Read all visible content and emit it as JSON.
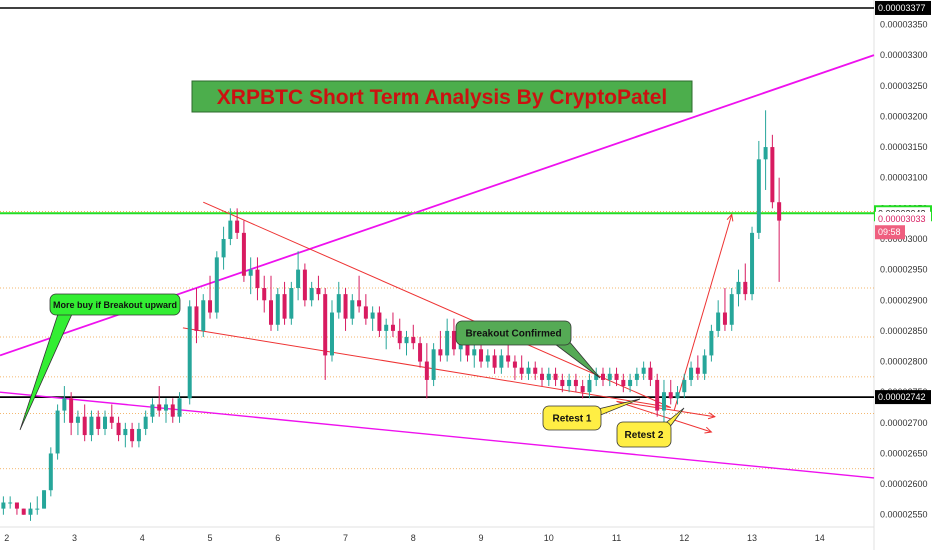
{
  "chart_data": {
    "type": "candlestick",
    "title": "XRPBTC Short Term Analysis By CryptoPatel",
    "ylim": [
      2.53e-05,
      3.39e-05
    ],
    "xlim": [
      1.9,
      14.8
    ],
    "y_ticks": [
      "0.00002550",
      "0.00002600",
      "0.00002650",
      "0.00002700",
      "0.00002750",
      "0.00002800",
      "0.00002850",
      "0.00002900",
      "0.00002950",
      "0.00003000",
      "0.00003050",
      "0.00003100",
      "0.00003150",
      "0.00003200",
      "0.00003250",
      "0.00003300",
      "0.00003350"
    ],
    "x_ticks": [
      "2",
      "3",
      "4",
      "5",
      "6",
      "7",
      "8",
      "9",
      "10",
      "11",
      "12",
      "13",
      "14"
    ],
    "colors": {
      "up": "#26a69a",
      "down": "#d81b60",
      "axis_text": "#333333"
    },
    "price_tags": [
      {
        "label": "0.00003377",
        "value": 3.377e-05,
        "style": "black"
      },
      {
        "label": "0.00003042",
        "value": 3.042e-05,
        "style": "green"
      },
      {
        "label": "0.00003033",
        "value": 3.033e-05,
        "style": "red"
      },
      {
        "label": "09:58",
        "value": 3.011e-05,
        "style": "red"
      },
      {
        "label": "0.00002742",
        "value": 2.742e-05,
        "style": "black"
      }
    ],
    "horizontal_lines": [
      {
        "value": 3.377e-05,
        "color": "#000000",
        "width": 1.5
      },
      {
        "value": 3.042e-05,
        "color": "#22dd22",
        "width": 2
      },
      {
        "value": 2.742e-05,
        "color": "#000000",
        "width": 1.8
      }
    ],
    "dotted_levels": [
      2.92e-05,
      2.84e-05,
      2.775e-05,
      2.715e-05,
      2.625e-05,
      3.045e-05
    ],
    "trendlines": [
      {
        "from": [
          1.9,
          2.81e-05
        ],
        "to": [
          14.8,
          3.3e-05
        ],
        "color": "#ee11ee",
        "width": 1.8
      },
      {
        "from": [
          1.9,
          2.75e-05
        ],
        "to": [
          14.8,
          2.61e-05
        ],
        "color": "#ee11ee",
        "width": 1.4
      },
      {
        "from": [
          4.9,
          3.06e-05
        ],
        "to": [
          11.8,
          2.725e-05
        ],
        "color": "#ee3333",
        "width": 1
      },
      {
        "from": [
          4.6,
          2.855e-05
        ],
        "to": [
          11.8,
          2.725e-05
        ],
        "color": "#ee3333",
        "width": 1
      },
      {
        "from": [
          11.0,
          2.735e-05
        ],
        "to": [
          12.45,
          2.71e-05
        ],
        "color": "#ee3333",
        "width": 1
      },
      {
        "from": [
          11.0,
          2.735e-05
        ],
        "to": [
          12.4,
          2.685e-05
        ],
        "color": "#ee3333",
        "width": 1
      },
      {
        "from": [
          11.85,
          2.72e-05
        ],
        "to": [
          12.7,
          3.04e-05
        ],
        "color": "#ee3333",
        "width": 1
      }
    ],
    "annotations": [
      {
        "id": "more-buy",
        "text": "More buy if Breakout upward",
        "x": 2.6,
        "y": 2.92e-05,
        "fill": "#33ee33"
      },
      {
        "id": "breakout",
        "text": "Breakout Confirmed",
        "x": 9.5,
        "y": 2.86e-05,
        "fill": "#55aa55"
      },
      {
        "id": "retest1",
        "text": "Retest 1",
        "x": 10.5,
        "y": 2.72e-05,
        "fill": "#ffee44"
      },
      {
        "id": "retest2",
        "text": "Retest 2",
        "x": 11.3,
        "y": 2.69e-05,
        "fill": "#ffee44"
      }
    ],
    "candles": [
      [
        1.95,
        2.56e-05,
        2.58e-05,
        2.55e-05,
        2.57e-05
      ],
      [
        2.05,
        2.57e-05,
        2.58e-05,
        2.56e-05,
        2.57e-05
      ],
      [
        2.15,
        2.57e-05,
        2.57e-05,
        2.55e-05,
        2.56e-05
      ],
      [
        2.25,
        2.56e-05,
        2.56e-05,
        2.55e-05,
        2.55e-05
      ],
      [
        2.35,
        2.55e-05,
        2.57e-05,
        2.54e-05,
        2.56e-05
      ],
      [
        2.45,
        2.56e-05,
        2.58e-05,
        2.55e-05,
        2.56e-05
      ],
      [
        2.55,
        2.56e-05,
        2.59e-05,
        2.56e-05,
        2.59e-05
      ],
      [
        2.65,
        2.59e-05,
        2.66e-05,
        2.58e-05,
        2.65e-05
      ],
      [
        2.75,
        2.65e-05,
        2.73e-05,
        2.64e-05,
        2.72e-05
      ],
      [
        2.85,
        2.72e-05,
        2.76e-05,
        2.7e-05,
        2.74e-05
      ],
      [
        2.95,
        2.74e-05,
        2.75e-05,
        2.68e-05,
        2.7e-05
      ],
      [
        3.05,
        2.7e-05,
        2.72e-05,
        2.68e-05,
        2.71e-05
      ],
      [
        3.15,
        2.71e-05,
        2.73e-05,
        2.67e-05,
        2.68e-05
      ],
      [
        3.25,
        2.68e-05,
        2.72e-05,
        2.67e-05,
        2.71e-05
      ],
      [
        3.35,
        2.71e-05,
        2.72e-05,
        2.68e-05,
        2.69e-05
      ],
      [
        3.45,
        2.69e-05,
        2.72e-05,
        2.68e-05,
        2.71e-05
      ],
      [
        3.55,
        2.71e-05,
        2.73e-05,
        2.69e-05,
        2.7e-05
      ],
      [
        3.65,
        2.7e-05,
        2.71e-05,
        2.67e-05,
        2.68e-05
      ],
      [
        3.75,
        2.68e-05,
        2.7e-05,
        2.66e-05,
        2.69e-05
      ],
      [
        3.85,
        2.69e-05,
        2.7e-05,
        2.66e-05,
        2.67e-05
      ],
      [
        3.95,
        2.67e-05,
        2.7e-05,
        2.66e-05,
        2.69e-05
      ],
      [
        4.05,
        2.69e-05,
        2.72e-05,
        2.68e-05,
        2.71e-05
      ],
      [
        4.15,
        2.71e-05,
        2.74e-05,
        2.7e-05,
        2.73e-05
      ],
      [
        4.25,
        2.73e-05,
        2.76e-05,
        2.71e-05,
        2.72e-05
      ],
      [
        4.35,
        2.72e-05,
        2.74e-05,
        2.7e-05,
        2.73e-05
      ],
      [
        4.45,
        2.73e-05,
        2.74e-05,
        2.7e-05,
        2.71e-05
      ],
      [
        4.55,
        2.71e-05,
        2.75e-05,
        2.7e-05,
        2.74e-05
      ],
      [
        4.7,
        2.74e-05,
        2.9e-05,
        2.73e-05,
        2.89e-05
      ],
      [
        4.8,
        2.89e-05,
        2.92e-05,
        2.83e-05,
        2.85e-05
      ],
      [
        4.9,
        2.85e-05,
        2.91e-05,
        2.84e-05,
        2.9e-05
      ],
      [
        5.0,
        2.9e-05,
        2.94e-05,
        2.87e-05,
        2.88e-05
      ],
      [
        5.1,
        2.88e-05,
        2.98e-05,
        2.87e-05,
        2.97e-05
      ],
      [
        5.2,
        2.97e-05,
        3.02e-05,
        2.95e-05,
        3e-05
      ],
      [
        5.3,
        3e-05,
        3.05e-05,
        2.99e-05,
        3.03e-05
      ],
      [
        5.4,
        3.03e-05,
        3.05e-05,
        3e-05,
        3.01e-05
      ],
      [
        5.5,
        3.01e-05,
        3.03e-05,
        2.93e-05,
        2.94e-05
      ],
      [
        5.6,
        2.94e-05,
        2.97e-05,
        2.91e-05,
        2.95e-05
      ],
      [
        5.7,
        2.95e-05,
        2.97e-05,
        2.9e-05,
        2.92e-05
      ],
      [
        5.8,
        2.92e-05,
        2.94e-05,
        2.88e-05,
        2.9e-05
      ],
      [
        5.9,
        2.9e-05,
        2.94e-05,
        2.85e-05,
        2.86e-05
      ],
      [
        6.0,
        2.86e-05,
        2.92e-05,
        2.85e-05,
        2.91e-05
      ],
      [
        6.1,
        2.91e-05,
        2.93e-05,
        2.86e-05,
        2.87e-05
      ],
      [
        6.2,
        2.87e-05,
        2.93e-05,
        2.86e-05,
        2.92e-05
      ],
      [
        6.3,
        2.92e-05,
        2.98e-05,
        2.9e-05,
        2.95e-05
      ],
      [
        6.4,
        2.95e-05,
        2.96e-05,
        2.89e-05,
        2.9e-05
      ],
      [
        6.5,
        2.9e-05,
        2.93e-05,
        2.89e-05,
        2.92e-05
      ],
      [
        6.6,
        2.92e-05,
        2.94e-05,
        2.9e-05,
        2.91e-05
      ],
      [
        6.7,
        2.91e-05,
        2.92e-05,
        2.77e-05,
        2.81e-05
      ],
      [
        6.8,
        2.81e-05,
        2.9e-05,
        2.8e-05,
        2.88e-05
      ],
      [
        6.9,
        2.88e-05,
        2.93e-05,
        2.87e-05,
        2.91e-05
      ],
      [
        7.0,
        2.91e-05,
        2.92e-05,
        2.85e-05,
        2.87e-05
      ],
      [
        7.1,
        2.87e-05,
        2.91e-05,
        2.86e-05,
        2.9e-05
      ],
      [
        7.2,
        2.9e-05,
        2.94e-05,
        2.88e-05,
        2.89e-05
      ],
      [
        7.3,
        2.89e-05,
        2.91e-05,
        2.86e-05,
        2.87e-05
      ],
      [
        7.4,
        2.87e-05,
        2.89e-05,
        2.85e-05,
        2.88e-05
      ],
      [
        7.5,
        2.88e-05,
        2.89e-05,
        2.84e-05,
        2.85e-05
      ],
      [
        7.6,
        2.85e-05,
        2.87e-05,
        2.82e-05,
        2.86e-05
      ],
      [
        7.7,
        2.86e-05,
        2.88e-05,
        2.84e-05,
        2.85e-05
      ],
      [
        7.8,
        2.85e-05,
        2.87e-05,
        2.82e-05,
        2.83e-05
      ],
      [
        7.9,
        2.83e-05,
        2.85e-05,
        2.81e-05,
        2.84e-05
      ],
      [
        8.0,
        2.84e-05,
        2.86e-05,
        2.82e-05,
        2.83e-05
      ],
      [
        8.1,
        2.83e-05,
        2.84e-05,
        2.79e-05,
        2.8e-05
      ],
      [
        8.2,
        2.8e-05,
        2.83e-05,
        2.74e-05,
        2.77e-05
      ],
      [
        8.3,
        2.77e-05,
        2.83e-05,
        2.76e-05,
        2.82e-05
      ],
      [
        8.4,
        2.82e-05,
        2.85e-05,
        2.8e-05,
        2.81e-05
      ],
      [
        8.5,
        2.81e-05,
        2.87e-05,
        2.8e-05,
        2.85e-05
      ],
      [
        8.6,
        2.85e-05,
        2.87e-05,
        2.81e-05,
        2.82e-05
      ],
      [
        8.7,
        2.82e-05,
        2.84e-05,
        2.8e-05,
        2.83e-05
      ],
      [
        8.8,
        2.83e-05,
        2.84e-05,
        2.8e-05,
        2.81e-05
      ],
      [
        8.9,
        2.81e-05,
        2.83e-05,
        2.79e-05,
        2.82e-05
      ],
      [
        9.0,
        2.82e-05,
        2.83e-05,
        2.79e-05,
        2.8e-05
      ],
      [
        9.1,
        2.8e-05,
        2.82e-05,
        2.79e-05,
        2.81e-05
      ],
      [
        9.2,
        2.81e-05,
        2.82e-05,
        2.78e-05,
        2.79e-05
      ],
      [
        9.3,
        2.79e-05,
        2.82e-05,
        2.78e-05,
        2.81e-05
      ],
      [
        9.4,
        2.81e-05,
        2.83e-05,
        2.79e-05,
        2.8e-05
      ],
      [
        9.5,
        2.8e-05,
        2.81e-05,
        2.77e-05,
        2.79e-05
      ],
      [
        9.6,
        2.79e-05,
        2.81e-05,
        2.77e-05,
        2.78e-05
      ],
      [
        9.7,
        2.78e-05,
        2.8e-05,
        2.77e-05,
        2.79e-05
      ],
      [
        9.8,
        2.79e-05,
        2.8e-05,
        2.77e-05,
        2.78e-05
      ],
      [
        9.9,
        2.78e-05,
        2.79e-05,
        2.76e-05,
        2.77e-05
      ],
      [
        10.0,
        2.77e-05,
        2.79e-05,
        2.76e-05,
        2.78e-05
      ],
      [
        10.1,
        2.78e-05,
        2.79e-05,
        2.76e-05,
        2.77e-05
      ],
      [
        10.2,
        2.77e-05,
        2.78e-05,
        2.75e-05,
        2.76e-05
      ],
      [
        10.3,
        2.76e-05,
        2.78e-05,
        2.75e-05,
        2.77e-05
      ],
      [
        10.4,
        2.77e-05,
        2.78e-05,
        2.75e-05,
        2.76e-05
      ],
      [
        10.5,
        2.76e-05,
        2.77e-05,
        2.74e-05,
        2.75e-05
      ],
      [
        10.6,
        2.75e-05,
        2.78e-05,
        2.74e-05,
        2.77e-05
      ],
      [
        10.7,
        2.77e-05,
        2.79e-05,
        2.76e-05,
        2.78e-05
      ],
      [
        10.8,
        2.78e-05,
        2.79e-05,
        2.76e-05,
        2.77e-05
      ],
      [
        10.9,
        2.77e-05,
        2.79e-05,
        2.76e-05,
        2.78e-05
      ],
      [
        11.0,
        2.78e-05,
        2.79e-05,
        2.76e-05,
        2.77e-05
      ],
      [
        11.1,
        2.77e-05,
        2.78e-05,
        2.75e-05,
        2.76e-05
      ],
      [
        11.2,
        2.76e-05,
        2.78e-05,
        2.75e-05,
        2.77e-05
      ],
      [
        11.3,
        2.77e-05,
        2.79e-05,
        2.76e-05,
        2.78e-05
      ],
      [
        11.4,
        2.78e-05,
        2.8e-05,
        2.77e-05,
        2.79e-05
      ],
      [
        11.5,
        2.79e-05,
        2.8e-05,
        2.76e-05,
        2.77e-05
      ],
      [
        11.6,
        2.77e-05,
        2.78e-05,
        2.71e-05,
        2.72e-05
      ],
      [
        11.7,
        2.72e-05,
        2.77e-05,
        2.68e-05,
        2.75e-05
      ],
      [
        11.8,
        2.75e-05,
        2.77e-05,
        2.73e-05,
        2.74e-05
      ],
      [
        11.9,
        2.74e-05,
        2.76e-05,
        2.73e-05,
        2.75e-05
      ],
      [
        12.0,
        2.75e-05,
        2.78e-05,
        2.74e-05,
        2.77e-05
      ],
      [
        12.1,
        2.77e-05,
        2.8e-05,
        2.76e-05,
        2.79e-05
      ],
      [
        12.2,
        2.79e-05,
        2.81e-05,
        2.77e-05,
        2.78e-05
      ],
      [
        12.3,
        2.78e-05,
        2.82e-05,
        2.77e-05,
        2.81e-05
      ],
      [
        12.4,
        2.81e-05,
        2.86e-05,
        2.8e-05,
        2.85e-05
      ],
      [
        12.5,
        2.85e-05,
        2.9e-05,
        2.84e-05,
        2.88e-05
      ],
      [
        12.6,
        2.88e-05,
        2.92e-05,
        2.85e-05,
        2.86e-05
      ],
      [
        12.7,
        2.86e-05,
        2.92e-05,
        2.85e-05,
        2.91e-05
      ],
      [
        12.8,
        2.91e-05,
        2.95e-05,
        2.89e-05,
        2.93e-05
      ],
      [
        12.9,
        2.93e-05,
        2.96e-05,
        2.9e-05,
        2.91e-05
      ],
      [
        13.0,
        2.91e-05,
        3.02e-05,
        2.9e-05,
        3.01e-05
      ],
      [
        13.1,
        3.01e-05,
        3.16e-05,
        3e-05,
        3.13e-05
      ],
      [
        13.2,
        3.13e-05,
        3.21e-05,
        3.08e-05,
        3.15e-05
      ],
      [
        13.3,
        3.15e-05,
        3.17e-05,
        3.05e-05,
        3.06e-05
      ],
      [
        13.4,
        3.06e-05,
        3.1e-05,
        2.93e-05,
        3.03e-05
      ]
    ]
  }
}
